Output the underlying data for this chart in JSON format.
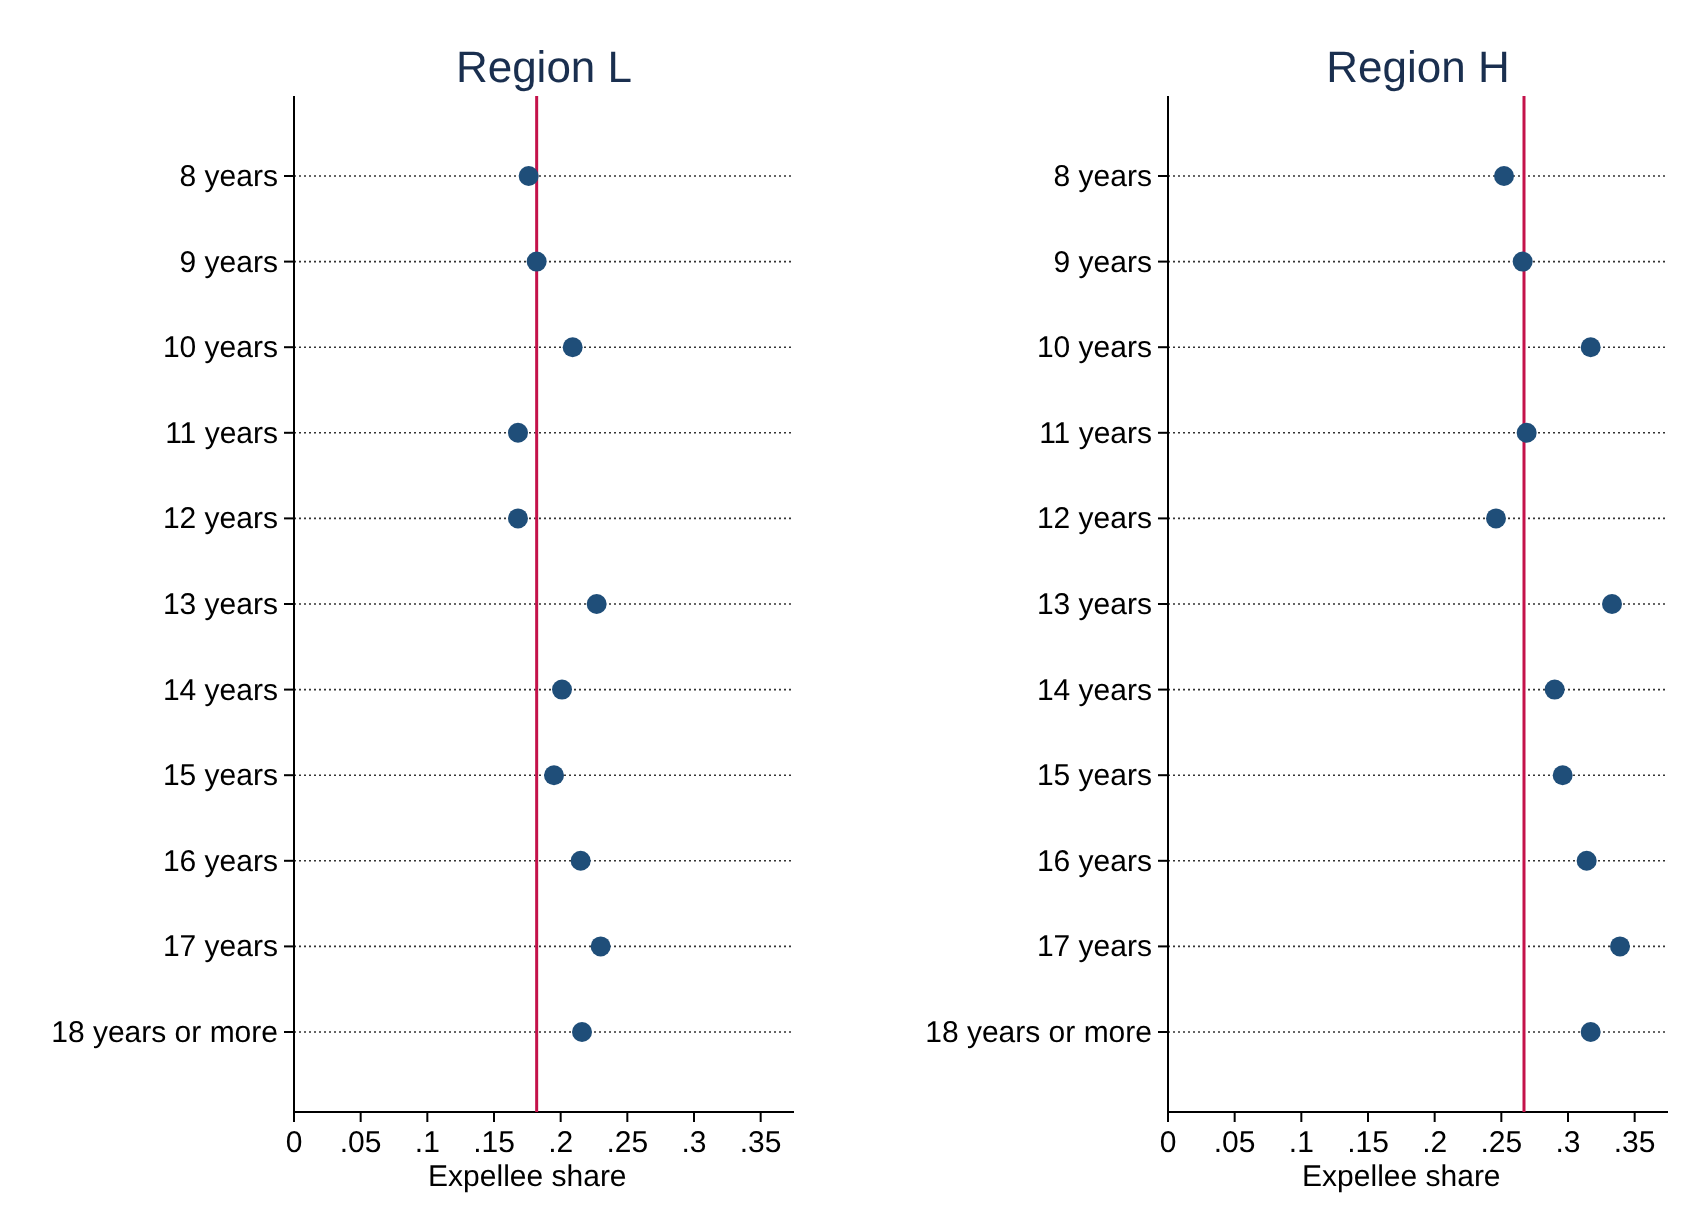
{
  "chart_data": [
    {
      "type": "scatter",
      "title": "Region L",
      "xlabel": "Expellee share",
      "orientation": "horizontal",
      "categories": [
        "8 years",
        "9 years",
        "10 years",
        "11 years",
        "12 years",
        "13 years",
        "14 years",
        "15 years",
        "16 years",
        "17 years",
        "18 years or more"
      ],
      "series": [
        {
          "color": "#1f4e79",
          "values": [
            0.176,
            0.182,
            0.209,
            0.168,
            0.168,
            0.227,
            0.201,
            0.195,
            0.215,
            0.23,
            0.216
          ]
        }
      ],
      "xlim": [
        0,
        0.375
      ],
      "xticks": [
        0,
        {
          "value": 0.05,
          "label": ".05"
        },
        {
          "value": 0.1,
          "label": ".1"
        },
        {
          "value": 0.15,
          "label": ".15"
        },
        {
          "value": 0.2,
          "label": ".2"
        },
        {
          "value": 0.25,
          "label": ".25"
        },
        {
          "value": 0.3,
          "label": ".3"
        },
        {
          "value": 0.35,
          "label": ".35"
        }
      ],
      "ref_lines": [
        {
          "axis": "x",
          "value": 0.182,
          "color": "#c4124a"
        }
      ],
      "grid": "y",
      "marker": "circle"
    },
    {
      "type": "scatter",
      "title": "Region H",
      "xlabel": "Expellee share",
      "orientation": "horizontal",
      "categories": [
        "8 years",
        "9 years",
        "10 years",
        "11 years",
        "12 years",
        "13 years",
        "14 years",
        "15 years",
        "16 years",
        "17 years",
        "18 years or more"
      ],
      "series": [
        {
          "color": "#1f4e79",
          "values": [
            0.252,
            0.266,
            0.317,
            0.269,
            0.246,
            0.333,
            0.29,
            0.296,
            0.314,
            0.339,
            0.317
          ]
        }
      ],
      "xlim": [
        0,
        0.375
      ],
      "xticks": [
        0,
        {
          "value": 0.05,
          "label": ".05"
        },
        {
          "value": 0.1,
          "label": ".1"
        },
        {
          "value": 0.15,
          "label": ".15"
        },
        {
          "value": 0.2,
          "label": ".2"
        },
        {
          "value": 0.25,
          "label": ".25"
        },
        {
          "value": 0.3,
          "label": ".3"
        },
        {
          "value": 0.35,
          "label": ".35"
        }
      ],
      "ref_lines": [
        {
          "axis": "x",
          "value": 0.267,
          "color": "#c4124a"
        }
      ],
      "grid": "y",
      "marker": "circle"
    }
  ]
}
